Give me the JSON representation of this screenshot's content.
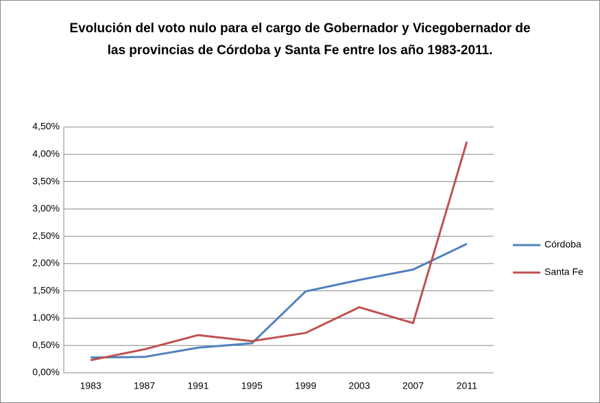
{
  "chart_data": {
    "type": "line",
    "title": "Evolución del voto nulo para el cargo de Gobernador y Vicegobernador de las provincias de Córdoba y Santa Fe entre los año 1983-2011.",
    "categories": [
      "1983",
      "1987",
      "1991",
      "1995",
      "1999",
      "2003",
      "2007",
      "2011"
    ],
    "series": [
      {
        "name": "Córdoba",
        "color": "#4f81bd",
        "values": [
          0.28,
          0.29,
          0.46,
          0.54,
          1.49,
          1.7,
          1.89,
          2.36
        ]
      },
      {
        "name": "Santa Fe",
        "color": "#c0504d",
        "values": [
          0.23,
          0.43,
          0.69,
          0.58,
          0.73,
          1.2,
          0.91,
          4.23
        ]
      }
    ],
    "ylim": [
      0,
      4.5
    ],
    "yticks": [
      {
        "value": 0,
        "label": "0,00%"
      },
      {
        "value": 0.5,
        "label": "0,50%"
      },
      {
        "value": 1,
        "label": "1,00%"
      },
      {
        "value": 1.5,
        "label": "1,50%"
      },
      {
        "value": 2,
        "label": "2,00%"
      },
      {
        "value": 2.5,
        "label": "2,50%"
      },
      {
        "value": 3,
        "label": "3,00%"
      },
      {
        "value": 3.5,
        "label": "3,50%"
      },
      {
        "value": 4,
        "label": "4,00%"
      },
      {
        "value": 4.5,
        "label": "4,50%"
      }
    ],
    "grid": true,
    "legend": "right"
  }
}
